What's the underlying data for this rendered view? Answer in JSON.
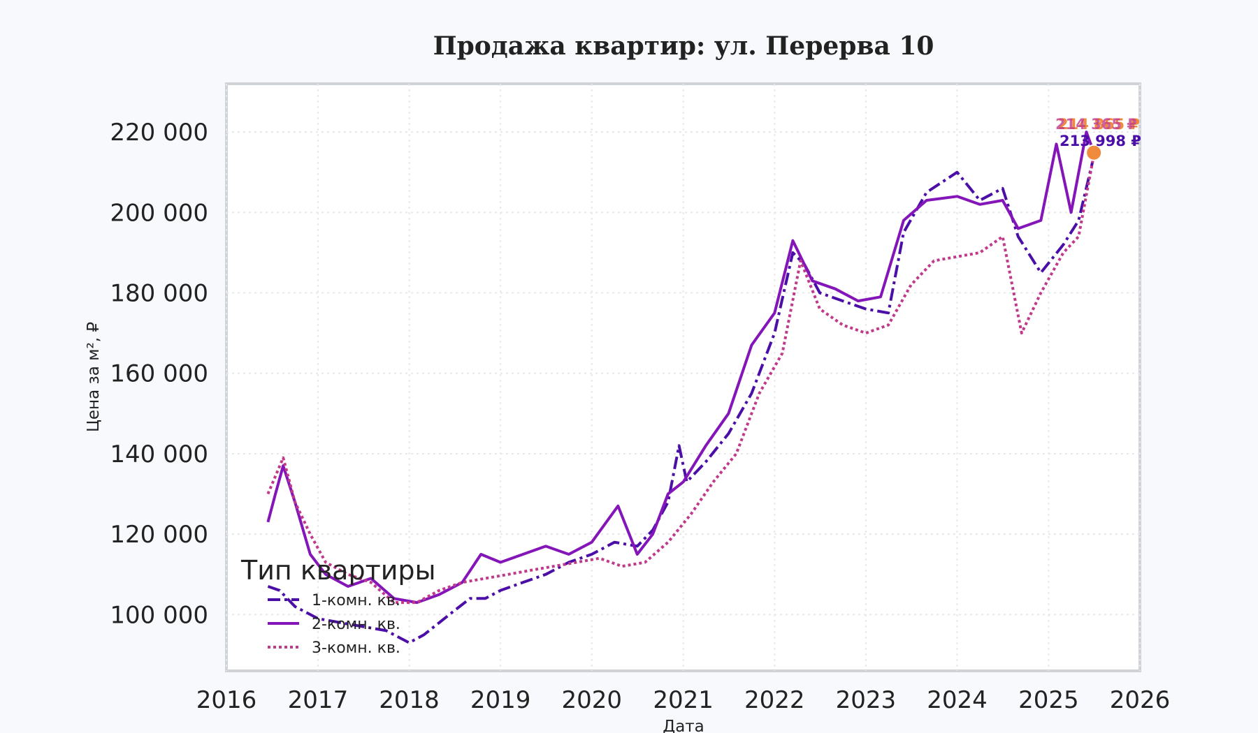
{
  "chart_data": {
    "type": "line",
    "title": "Продажа квартир: ул. Перерва 10",
    "xlabel": "Дата",
    "ylabel": "Цена за м², ₽",
    "xlim": [
      "2016-01-01",
      "2026-01-01"
    ],
    "ylim": [
      86000,
      232000
    ],
    "x_ticks": [
      "2016",
      "2017",
      "2018",
      "2019",
      "2020",
      "2021",
      "2022",
      "2023",
      "2024",
      "2025",
      "2026"
    ],
    "y_ticks": [
      "100 000",
      "120 000",
      "140 000",
      "160 000",
      "180 000",
      "200 000",
      "220 000"
    ],
    "y_tick_values": [
      100000,
      120000,
      140000,
      160000,
      180000,
      200000,
      220000
    ],
    "grid": true,
    "legend": {
      "title": "Тип квартиры",
      "placement": "lower-left"
    },
    "series": [
      {
        "name": "1-комн. кв.",
        "color": "#4b0fa8",
        "dash": "dashdot",
        "end_label": "213 998 ₽",
        "points": [
          [
            "2016-06-15",
            107000
          ],
          [
            "2016-08-01",
            106000
          ],
          [
            "2016-10-01",
            102000
          ],
          [
            "2017-01-01",
            99000
          ],
          [
            "2017-04-01",
            98000
          ],
          [
            "2017-07-01",
            97000
          ],
          [
            "2017-10-01",
            96000
          ],
          [
            "2018-01-01",
            93000
          ],
          [
            "2018-03-01",
            95000
          ],
          [
            "2018-05-01",
            98000
          ],
          [
            "2018-07-01",
            101000
          ],
          [
            "2018-09-01",
            104000
          ],
          [
            "2018-11-01",
            104000
          ],
          [
            "2019-01-01",
            106000
          ],
          [
            "2019-04-01",
            108000
          ],
          [
            "2019-07-01",
            110000
          ],
          [
            "2019-10-01",
            113000
          ],
          [
            "2020-01-01",
            115000
          ],
          [
            "2020-04-01",
            118000
          ],
          [
            "2020-07-01",
            117000
          ],
          [
            "2020-09-01",
            121000
          ],
          [
            "2020-11-01",
            128000
          ],
          [
            "2020-12-15",
            142000
          ],
          [
            "2021-01-15",
            133000
          ],
          [
            "2021-04-01",
            138000
          ],
          [
            "2021-07-01",
            145000
          ],
          [
            "2021-10-01",
            155000
          ],
          [
            "2022-01-01",
            170000
          ],
          [
            "2022-03-15",
            190000
          ],
          [
            "2022-05-01",
            187000
          ],
          [
            "2022-07-01",
            180000
          ],
          [
            "2022-10-01",
            178000
          ],
          [
            "2023-01-01",
            176000
          ],
          [
            "2023-04-01",
            175000
          ],
          [
            "2023-06-01",
            195000
          ],
          [
            "2023-09-01",
            205000
          ],
          [
            "2024-01-01",
            210000
          ],
          [
            "2024-04-01",
            203000
          ],
          [
            "2024-07-01",
            206000
          ],
          [
            "2024-09-01",
            194000
          ],
          [
            "2024-12-01",
            185000
          ],
          [
            "2025-03-01",
            192000
          ],
          [
            "2025-05-01",
            198000
          ],
          [
            "2025-07-01",
            213998
          ]
        ]
      },
      {
        "name": "2-комн. кв.",
        "color": "#8415b8",
        "dash": "solid",
        "end_label": "214 865 ₽",
        "points": [
          [
            "2016-06-15",
            123000
          ],
          [
            "2016-07-15",
            130000
          ],
          [
            "2016-08-15",
            137000
          ],
          [
            "2016-10-01",
            128000
          ],
          [
            "2016-12-01",
            115000
          ],
          [
            "2017-02-01",
            110000
          ],
          [
            "2017-05-01",
            107000
          ],
          [
            "2017-08-01",
            109000
          ],
          [
            "2017-11-01",
            104000
          ],
          [
            "2018-02-01",
            103000
          ],
          [
            "2018-05-01",
            105000
          ],
          [
            "2018-08-01",
            108000
          ],
          [
            "2018-10-15",
            115000
          ],
          [
            "2019-01-01",
            113000
          ],
          [
            "2019-04-01",
            115000
          ],
          [
            "2019-07-01",
            117000
          ],
          [
            "2019-10-01",
            115000
          ],
          [
            "2020-01-01",
            118000
          ],
          [
            "2020-04-15",
            127000
          ],
          [
            "2020-07-01",
            115000
          ],
          [
            "2020-09-01",
            120000
          ],
          [
            "2020-11-01",
            130000
          ],
          [
            "2021-01-01",
            133000
          ],
          [
            "2021-04-01",
            142000
          ],
          [
            "2021-07-01",
            150000
          ],
          [
            "2021-10-01",
            167000
          ],
          [
            "2022-01-01",
            175000
          ],
          [
            "2022-03-15",
            193000
          ],
          [
            "2022-06-01",
            183000
          ],
          [
            "2022-09-01",
            181000
          ],
          [
            "2022-12-01",
            178000
          ],
          [
            "2023-03-01",
            179000
          ],
          [
            "2023-06-01",
            198000
          ],
          [
            "2023-09-01",
            203000
          ],
          [
            "2024-01-01",
            204000
          ],
          [
            "2024-04-01",
            202000
          ],
          [
            "2024-07-01",
            203000
          ],
          [
            "2024-09-01",
            196000
          ],
          [
            "2024-12-01",
            198000
          ],
          [
            "2025-02-01",
            217000
          ],
          [
            "2025-04-01",
            200000
          ],
          [
            "2025-06-01",
            220000
          ],
          [
            "2025-07-01",
            214865
          ]
        ]
      },
      {
        "name": "3-комн. кв.",
        "color": "#c03a8c",
        "dash": "dotted",
        "end_label": "214 365 ₽",
        "points": [
          [
            "2016-06-15",
            130000
          ],
          [
            "2016-08-15",
            139000
          ],
          [
            "2016-10-01",
            128000
          ],
          [
            "2016-12-01",
            120000
          ],
          [
            "2017-02-01",
            113000
          ],
          [
            "2017-05-01",
            110000
          ],
          [
            "2017-08-01",
            108000
          ],
          [
            "2017-11-01",
            103000
          ],
          [
            "2018-02-01",
            103000
          ],
          [
            "2018-05-01",
            106000
          ],
          [
            "2018-08-01",
            108000
          ],
          [
            "2018-11-01",
            109000
          ],
          [
            "2019-02-01",
            110000
          ],
          [
            "2019-05-01",
            111000
          ],
          [
            "2019-08-01",
            112000
          ],
          [
            "2019-11-01",
            113000
          ],
          [
            "2020-02-01",
            114000
          ],
          [
            "2020-05-01",
            112000
          ],
          [
            "2020-08-01",
            113000
          ],
          [
            "2020-11-01",
            118000
          ],
          [
            "2021-02-01",
            125000
          ],
          [
            "2021-05-01",
            133000
          ],
          [
            "2021-08-01",
            140000
          ],
          [
            "2021-11-01",
            155000
          ],
          [
            "2022-02-01",
            165000
          ],
          [
            "2022-04-15",
            188000
          ],
          [
            "2022-07-01",
            176000
          ],
          [
            "2022-10-01",
            172000
          ],
          [
            "2023-01-01",
            170000
          ],
          [
            "2023-04-01",
            172000
          ],
          [
            "2023-07-01",
            182000
          ],
          [
            "2023-10-01",
            188000
          ],
          [
            "2024-01-01",
            189000
          ],
          [
            "2024-04-01",
            190000
          ],
          [
            "2024-07-01",
            194000
          ],
          [
            "2024-09-15",
            170000
          ],
          [
            "2024-12-01",
            180000
          ],
          [
            "2025-03-01",
            190000
          ],
          [
            "2025-05-01",
            194000
          ],
          [
            "2025-07-01",
            214365
          ]
        ]
      }
    ],
    "end_marker_color": "#f08a3c"
  }
}
